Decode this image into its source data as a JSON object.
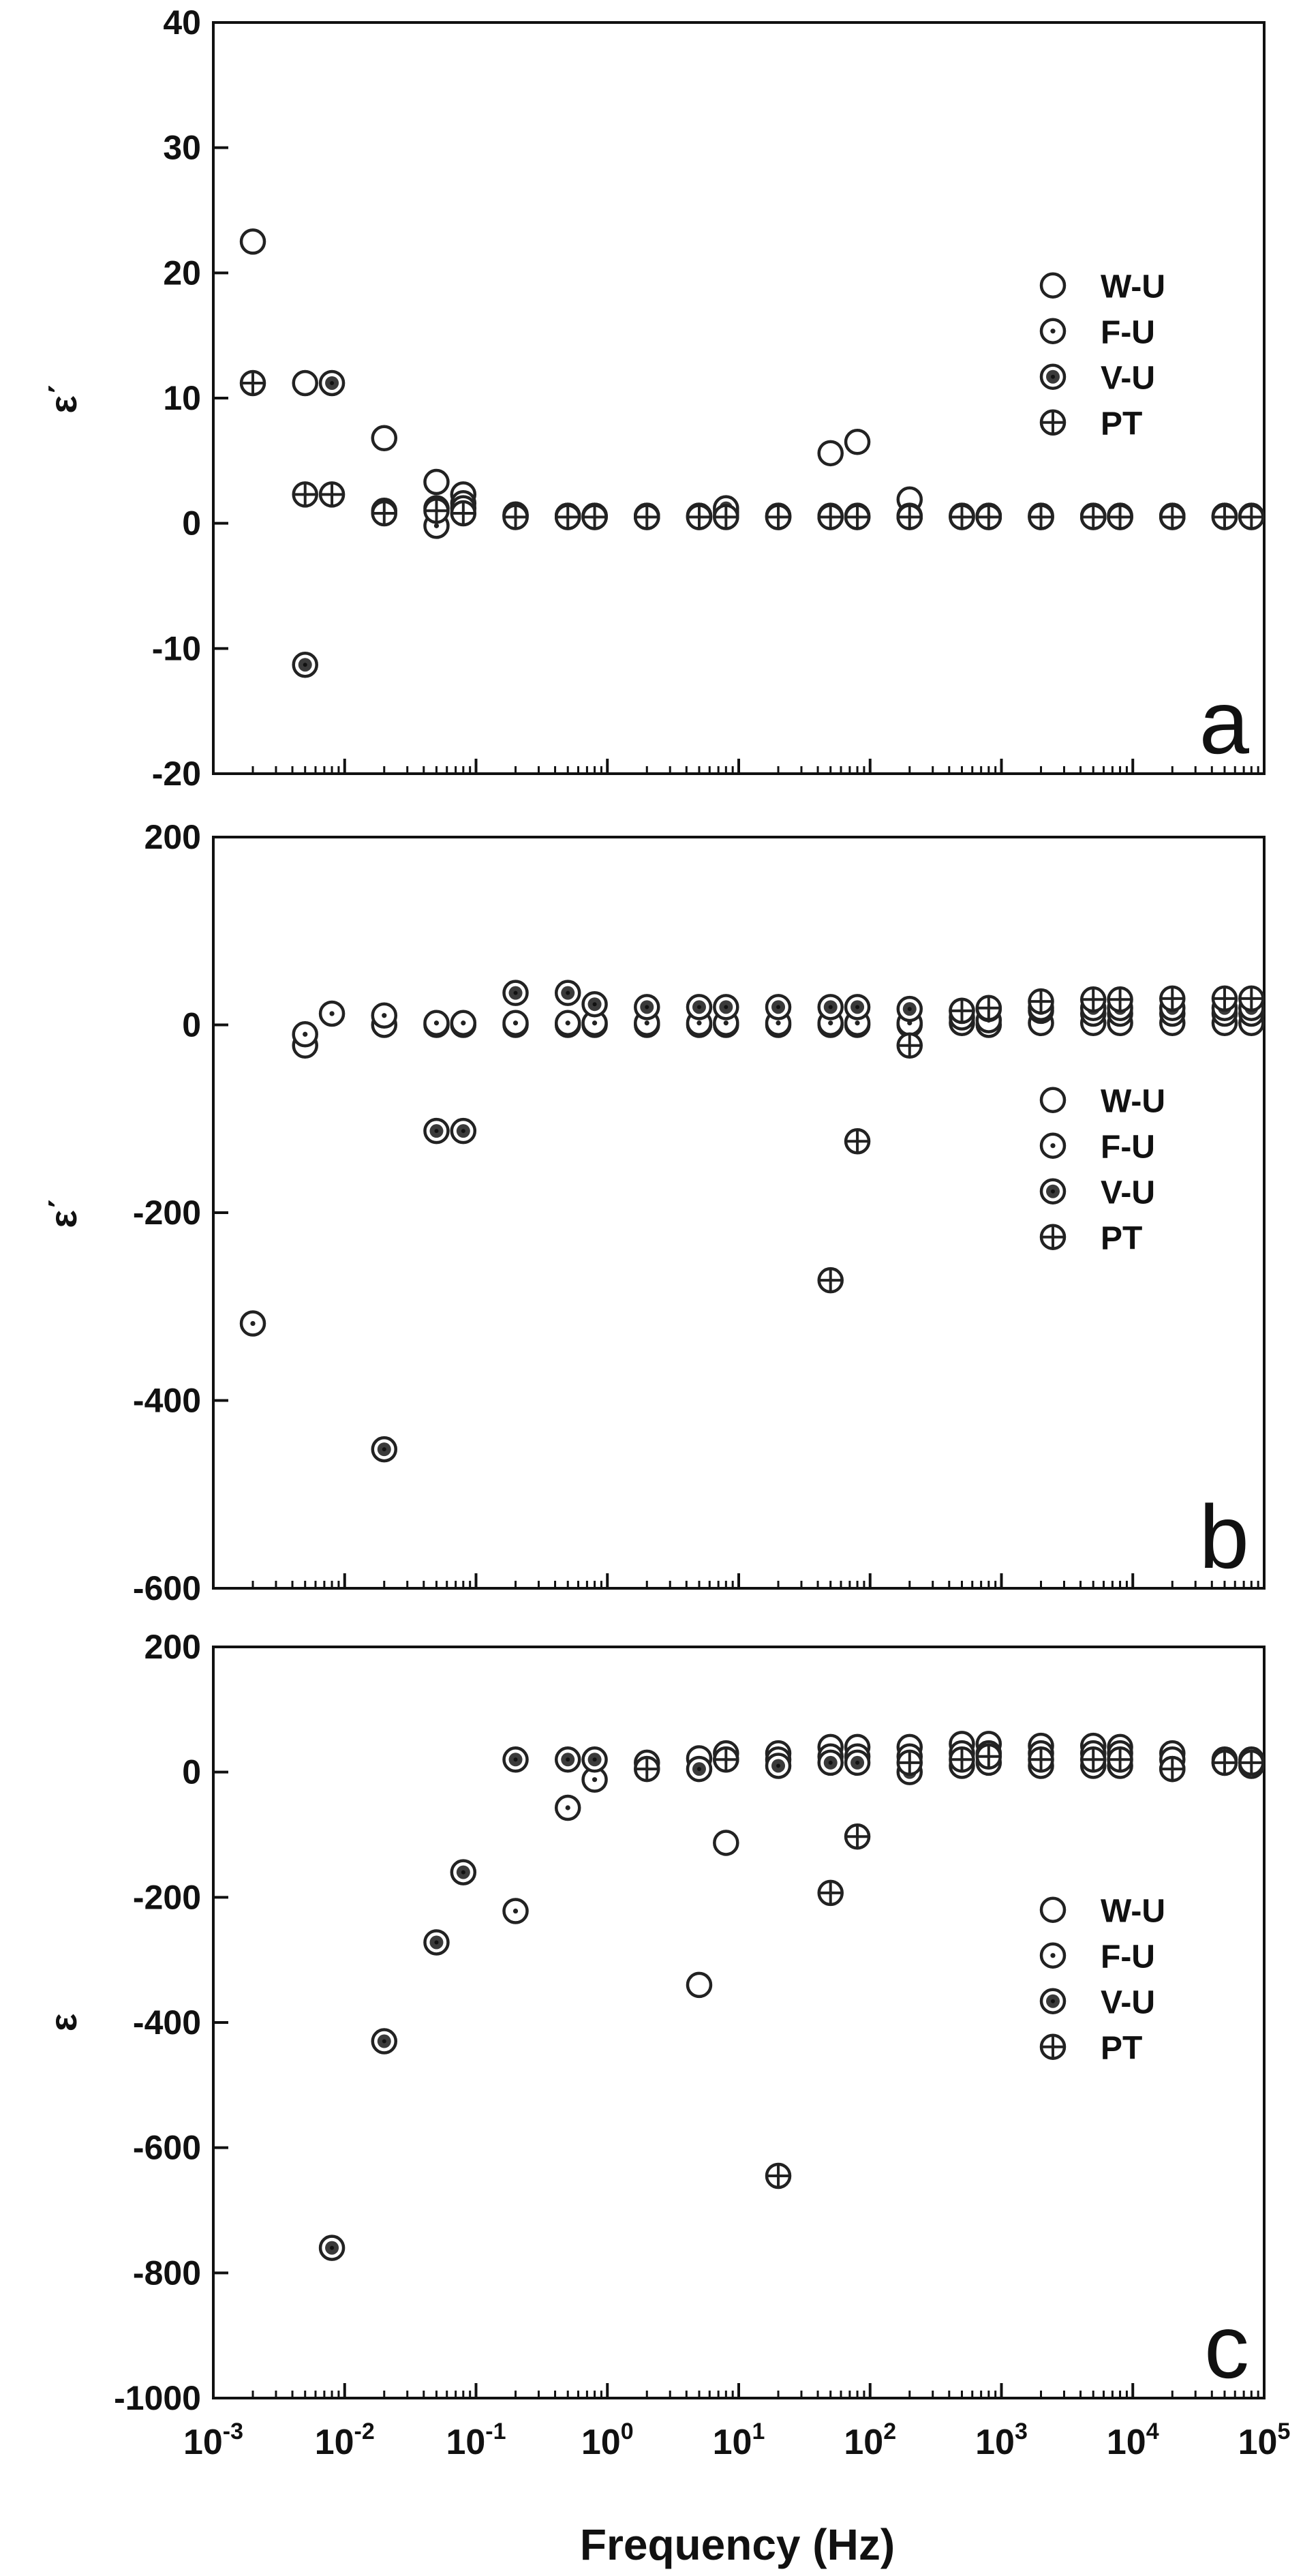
{
  "figure": {
    "xlabel": "Frequency (Hz)",
    "x_axis_scale": "log",
    "xlim": [
      0.001,
      100000
    ]
  },
  "chart_data": [
    {
      "type": "scatter",
      "panel_letter": "a",
      "ylabel": "ε΄",
      "ylim": [
        -20,
        40
      ],
      "yticks": [
        -20,
        -10,
        0,
        10,
        20,
        30,
        40
      ],
      "legend_position": "right-middle",
      "series": [
        {
          "name": "W-U",
          "marker": "open-circle",
          "points": [
            [
              0.002,
              22.5
            ],
            [
              0.005,
              11.2
            ],
            [
              0.02,
              6.8
            ],
            [
              0.05,
              3.3
            ],
            [
              0.08,
              2.3
            ],
            [
              0.2,
              0.7
            ],
            [
              0.5,
              0.6
            ],
            [
              0.8,
              0.6
            ],
            [
              2,
              0.6
            ],
            [
              5,
              0.6
            ],
            [
              8,
              0.6
            ],
            [
              20,
              0.6
            ],
            [
              50,
              5.6
            ],
            [
              80,
              6.5
            ],
            [
              200,
              1.9
            ],
            [
              500,
              0.6
            ],
            [
              800,
              0.6
            ],
            [
              2000,
              0.6
            ],
            [
              5000,
              0.6
            ],
            [
              8000,
              0.6
            ],
            [
              20000,
              0.6
            ],
            [
              50000,
              0.6
            ],
            [
              80000,
              0.6
            ]
          ]
        },
        {
          "name": "F-U",
          "marker": "dot-circle",
          "points": [
            [
              0.05,
              -0.2
            ],
            [
              0.08,
              1.6
            ],
            [
              0.2,
              0.6
            ],
            [
              0.5,
              0.5
            ],
            [
              0.8,
              0.5
            ],
            [
              2,
              0.5
            ],
            [
              5,
              0.5
            ],
            [
              8,
              0.9
            ],
            [
              20,
              0.5
            ],
            [
              50,
              0.5
            ],
            [
              80,
              0.5
            ],
            [
              200,
              0.5
            ],
            [
              500,
              0.5
            ],
            [
              800,
              0.5
            ],
            [
              2000,
              0.5
            ],
            [
              5000,
              0.5
            ],
            [
              8000,
              0.5
            ],
            [
              20000,
              0.5
            ],
            [
              50000,
              0.5
            ],
            [
              80000,
              0.5
            ]
          ]
        },
        {
          "name": "V-U",
          "marker": "filled-dot-circle",
          "points": [
            [
              0.005,
              -11.3
            ],
            [
              0.008,
              11.2
            ],
            [
              0.02,
              1.0
            ],
            [
              0.05,
              1.2
            ],
            [
              0.08,
              1.2
            ],
            [
              0.2,
              0.6
            ],
            [
              0.5,
              0.6
            ],
            [
              0.8,
              0.6
            ],
            [
              2,
              0.6
            ],
            [
              5,
              0.6
            ],
            [
              8,
              1.2
            ],
            [
              20,
              0.6
            ],
            [
              50,
              0.6
            ],
            [
              80,
              0.6
            ],
            [
              200,
              0.6
            ],
            [
              500,
              0.6
            ],
            [
              800,
              0.6
            ],
            [
              2000,
              0.6
            ],
            [
              5000,
              0.6
            ],
            [
              8000,
              0.6
            ],
            [
              20000,
              0.6
            ],
            [
              50000,
              0.6
            ],
            [
              80000,
              0.6
            ]
          ]
        },
        {
          "name": "PT",
          "marker": "cross-circle",
          "points": [
            [
              0.002,
              11.2
            ],
            [
              0.005,
              2.3
            ],
            [
              0.008,
              2.3
            ],
            [
              0.02,
              0.8
            ],
            [
              0.05,
              1.0
            ],
            [
              0.08,
              0.8
            ],
            [
              0.2,
              0.5
            ],
            [
              0.5,
              0.5
            ],
            [
              0.8,
              0.5
            ],
            [
              2,
              0.5
            ],
            [
              5,
              0.5
            ],
            [
              8,
              0.5
            ],
            [
              20,
              0.5
            ],
            [
              50,
              0.5
            ],
            [
              80,
              0.5
            ],
            [
              200,
              0.5
            ],
            [
              500,
              0.5
            ],
            [
              800,
              0.5
            ],
            [
              2000,
              0.5
            ],
            [
              5000,
              0.5
            ],
            [
              8000,
              0.5
            ],
            [
              20000,
              0.5
            ],
            [
              50000,
              0.5
            ],
            [
              80000,
              0.5
            ]
          ]
        }
      ]
    },
    {
      "type": "scatter",
      "panel_letter": "b",
      "ylabel": "ε΄",
      "ylim": [
        -600,
        200
      ],
      "yticks": [
        -600,
        -400,
        -200,
        0,
        200
      ],
      "legend_position": "right-middle",
      "series": [
        {
          "name": "W-U",
          "marker": "open-circle",
          "points": [
            [
              0.005,
              -22
            ],
            [
              0.02,
              0
            ],
            [
              0.05,
              0
            ],
            [
              0.08,
              0
            ],
            [
              0.2,
              0
            ],
            [
              0.5,
              0
            ],
            [
              0.8,
              0
            ],
            [
              2,
              0
            ],
            [
              5,
              0
            ],
            [
              8,
              0
            ],
            [
              20,
              0
            ],
            [
              50,
              0
            ],
            [
              80,
              0
            ],
            [
              200,
              0
            ],
            [
              500,
              2
            ],
            [
              800,
              0
            ],
            [
              2000,
              2
            ],
            [
              5000,
              2
            ],
            [
              8000,
              2
            ],
            [
              20000,
              2
            ],
            [
              50000,
              2
            ],
            [
              80000,
              2
            ]
          ]
        },
        {
          "name": "F-U",
          "marker": "dot-circle",
          "points": [
            [
              0.002,
              -318
            ],
            [
              0.005,
              -10
            ],
            [
              0.008,
              12
            ],
            [
              0.02,
              10
            ],
            [
              0.05,
              2
            ],
            [
              0.08,
              2
            ],
            [
              0.2,
              2
            ],
            [
              0.5,
              2
            ],
            [
              0.8,
              2
            ],
            [
              2,
              2
            ],
            [
              5,
              2
            ],
            [
              8,
              2
            ],
            [
              20,
              2
            ],
            [
              50,
              2
            ],
            [
              80,
              2
            ],
            [
              200,
              2
            ],
            [
              500,
              8
            ],
            [
              800,
              5
            ],
            [
              2000,
              15
            ],
            [
              5000,
              12
            ],
            [
              8000,
              12
            ],
            [
              20000,
              12
            ],
            [
              50000,
              12
            ],
            [
              80000,
              12
            ]
          ]
        },
        {
          "name": "V-U",
          "marker": "filled-dot-circle",
          "points": [
            [
              0.02,
              -452
            ],
            [
              0.05,
              -113
            ],
            [
              0.08,
              -113
            ],
            [
              0.2,
              34
            ],
            [
              0.5,
              34
            ],
            [
              0.8,
              22
            ],
            [
              2,
              19
            ],
            [
              5,
              19
            ],
            [
              8,
              19
            ],
            [
              20,
              19
            ],
            [
              50,
              19
            ],
            [
              80,
              19
            ],
            [
              200,
              17
            ],
            [
              500,
              15
            ],
            [
              800,
              17
            ],
            [
              2000,
              18
            ],
            [
              5000,
              18
            ],
            [
              8000,
              18
            ],
            [
              20000,
              18
            ],
            [
              50000,
              18
            ],
            [
              80000,
              18
            ]
          ]
        },
        {
          "name": "PT",
          "marker": "cross-circle",
          "points": [
            [
              50,
              -272
            ],
            [
              80,
              -124
            ],
            [
              200,
              -22
            ],
            [
              500,
              15
            ],
            [
              800,
              18
            ],
            [
              2000,
              25
            ],
            [
              5000,
              27
            ],
            [
              8000,
              27
            ],
            [
              20000,
              28
            ],
            [
              50000,
              28
            ],
            [
              80000,
              28
            ]
          ]
        }
      ]
    },
    {
      "type": "scatter",
      "panel_letter": "c",
      "ylabel": "ε",
      "ylim": [
        -1000,
        200
      ],
      "yticks": [
        -1000,
        -800,
        -600,
        -400,
        -200,
        0,
        200
      ],
      "legend_position": "right-middle",
      "series": [
        {
          "name": "W-U",
          "marker": "open-circle",
          "points": [
            [
              5,
              -340
            ],
            [
              8,
              -113
            ],
            [
              20,
              30
            ],
            [
              50,
              40
            ],
            [
              80,
              40
            ],
            [
              200,
              40
            ],
            [
              500,
              45
            ],
            [
              800,
              45
            ],
            [
              2000,
              42
            ],
            [
              5000,
              42
            ],
            [
              8000,
              40
            ],
            [
              20000,
              30
            ],
            [
              50000,
              20
            ],
            [
              80000,
              15
            ]
          ]
        },
        {
          "name": "F-U",
          "marker": "dot-circle",
          "points": [
            [
              0.2,
              -222
            ],
            [
              0.5,
              -57
            ],
            [
              0.8,
              -12
            ],
            [
              5,
              22
            ],
            [
              8,
              30
            ],
            [
              20,
              20
            ],
            [
              50,
              25
            ],
            [
              80,
              25
            ],
            [
              200,
              25
            ],
            [
              500,
              30
            ],
            [
              800,
              30
            ],
            [
              2000,
              30
            ],
            [
              5000,
              30
            ],
            [
              8000,
              30
            ],
            [
              20000,
              20
            ],
            [
              50000,
              15
            ],
            [
              80000,
              10
            ]
          ]
        },
        {
          "name": "V-U",
          "marker": "filled-dot-circle",
          "points": [
            [
              0.008,
              -760
            ],
            [
              0.02,
              -430
            ],
            [
              0.05,
              -272
            ],
            [
              0.08,
              -160
            ],
            [
              0.2,
              20
            ],
            [
              0.5,
              20
            ],
            [
              0.8,
              20
            ],
            [
              2,
              15
            ],
            [
              5,
              5
            ],
            [
              8,
              20
            ],
            [
              20,
              10
            ],
            [
              50,
              15
            ],
            [
              80,
              15
            ],
            [
              200,
              0
            ],
            [
              500,
              10
            ],
            [
              800,
              15
            ],
            [
              2000,
              10
            ],
            [
              5000,
              10
            ],
            [
              8000,
              10
            ],
            [
              20000,
              5
            ],
            [
              50000,
              15
            ],
            [
              80000,
              20
            ]
          ]
        },
        {
          "name": "PT",
          "marker": "cross-circle",
          "points": [
            [
              2,
              5
            ],
            [
              8,
              20
            ],
            [
              20,
              -645
            ],
            [
              50,
              -193
            ],
            [
              80,
              -103
            ],
            [
              200,
              15
            ],
            [
              500,
              20
            ],
            [
              800,
              25
            ],
            [
              2000,
              20
            ],
            [
              5000,
              20
            ],
            [
              8000,
              20
            ],
            [
              20000,
              5
            ],
            [
              50000,
              15
            ],
            [
              80000,
              15
            ]
          ]
        }
      ]
    }
  ]
}
